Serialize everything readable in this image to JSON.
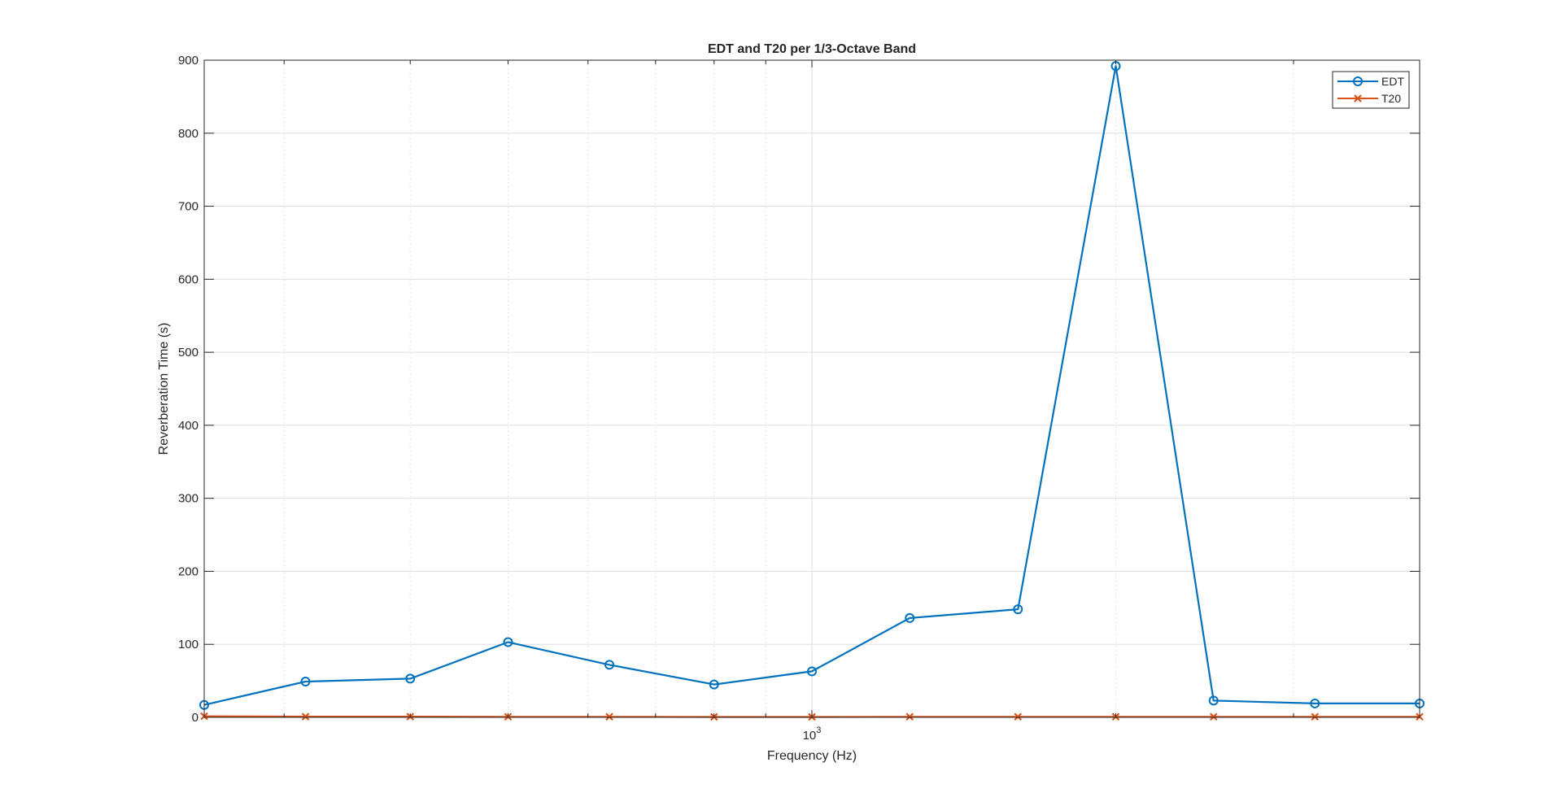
{
  "chart_data": {
    "type": "line",
    "title": "EDT and T20 per 1/3-Octave Band",
    "xlabel": "Frequency (Hz)",
    "ylabel": "Reverberation Time (s)",
    "xscale": "log",
    "xlim": [
      250,
      4000
    ],
    "ylim": [
      0,
      900
    ],
    "yticks": [
      0,
      100,
      200,
      300,
      400,
      500,
      600,
      700,
      800,
      900
    ],
    "xtick_label": {
      "base": "10",
      "exponent": "3",
      "value": 1000
    },
    "grid": true,
    "legend_location": "top-right",
    "x": [
      250,
      315,
      400,
      500,
      630,
      800,
      1000,
      1250,
      1600,
      2000,
      2500,
      3150,
      4000
    ],
    "series": [
      {
        "name": "EDT",
        "color": "#0072BD",
        "marker": "circle",
        "values": [
          17,
          49,
          53,
          103,
          72,
          45,
          63,
          136,
          148,
          892,
          23,
          19,
          19
        ]
      },
      {
        "name": "T20",
        "color": "#D95319",
        "marker": "x",
        "values": [
          1.5,
          1.0,
          1.0,
          0.8,
          0.8,
          0.6,
          0.6,
          0.8,
          0.8,
          0.8,
          0.8,
          0.8,
          0.8
        ]
      }
    ]
  }
}
